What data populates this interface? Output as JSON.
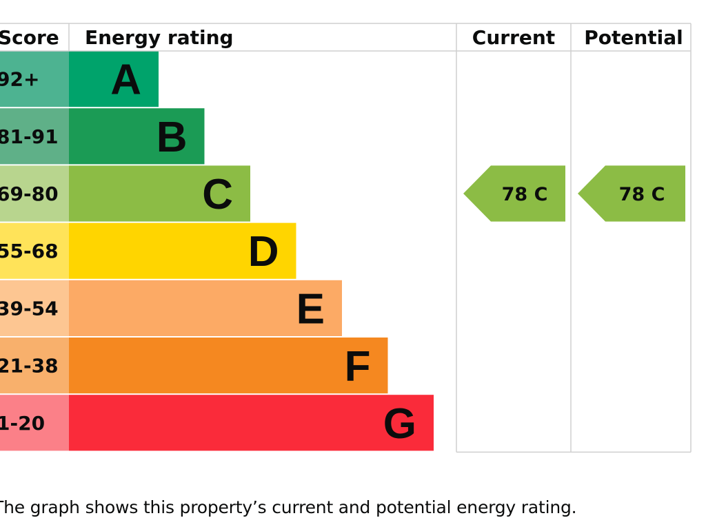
{
  "chart_data": {
    "type": "bar",
    "title": "Energy rating",
    "headers": {
      "score": "Score",
      "rating": "Energy rating",
      "current": "Current",
      "potential": "Potential"
    },
    "bands": [
      {
        "letter": "A",
        "range": "92+",
        "color": "#00a36b",
        "score_color": "#4db391"
      },
      {
        "letter": "B",
        "range": "81-91",
        "color": "#1b9b55",
        "score_color": "#5fb088"
      },
      {
        "letter": "C",
        "range": "69-80",
        "color": "#8cbc45",
        "score_color": "#b8d58e"
      },
      {
        "letter": "D",
        "range": "55-68",
        "color": "#ffd500",
        "score_color": "#ffe359"
      },
      {
        "letter": "E",
        "range": "39-54",
        "color": "#fcaa65",
        "score_color": "#fdc692"
      },
      {
        "letter": "F",
        "range": "21-38",
        "color": "#f58820",
        "score_color": "#f8b06c"
      },
      {
        "letter": "G",
        "range": "1-20",
        "color": "#fa2b3a",
        "score_color": "#fb8088"
      }
    ],
    "current": {
      "score": 78,
      "band": "C",
      "label": "78  C"
    },
    "potential": {
      "score": 78,
      "band": "C",
      "label": "78  C"
    },
    "border_color": "#cfcfcf"
  },
  "caption": "The graph shows this property’s current and potential energy rating."
}
